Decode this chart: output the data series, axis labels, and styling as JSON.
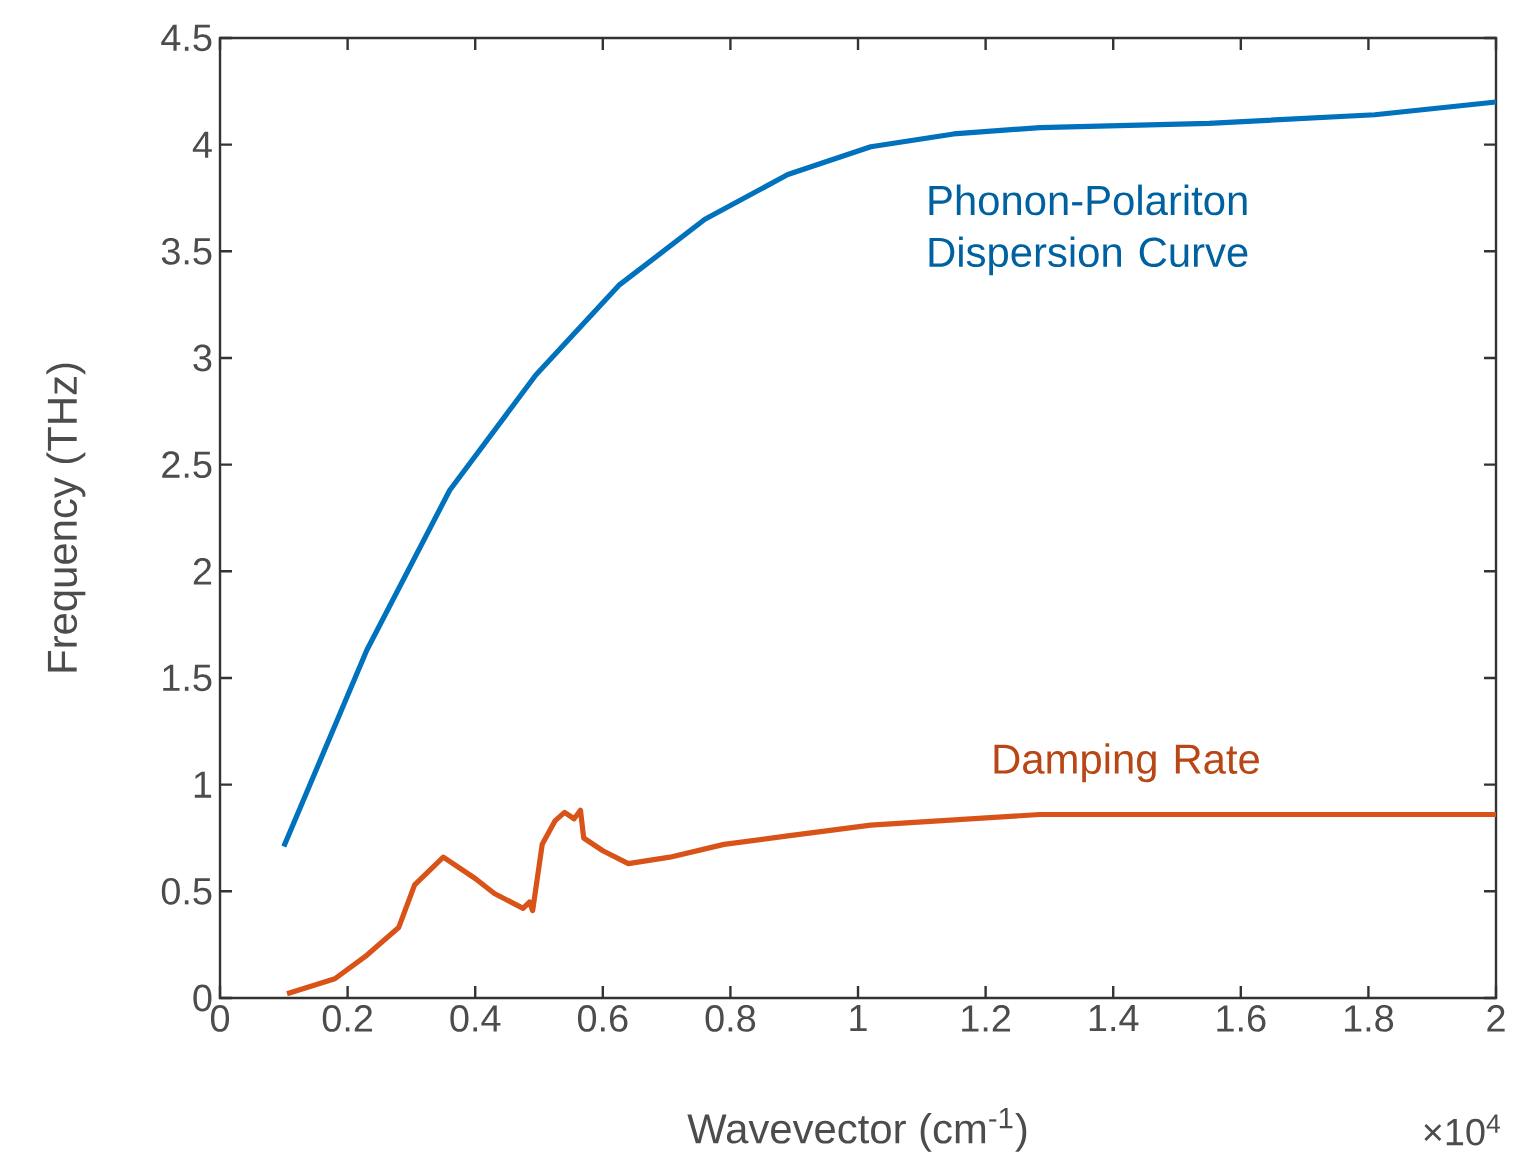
{
  "chart_data": {
    "type": "line",
    "xlabel": "Wavevector (cm$^{-1}$)",
    "ylabel": "Frequency (THz)",
    "xlim": [
      0,
      2
    ],
    "ylim": [
      0,
      4.5
    ],
    "xticks": [
      0,
      0.2,
      0.4,
      0.6,
      0.8,
      1,
      1.2,
      1.4,
      1.6,
      1.8,
      2
    ],
    "yticks": [
      0,
      0.5,
      1,
      1.5,
      2,
      2.5,
      3,
      3.5,
      4,
      4.5
    ],
    "annotations": [
      "×10$^{4}$"
    ],
    "grid": false,
    "legend": false,
    "marker": "none",
    "line_style": "solid",
    "series": [
      {
        "name": "Phonon-Polariton Dispersion Curve",
        "color": "#0072bd",
        "x": [
          0.1,
          0.23,
          0.36,
          0.495,
          0.625,
          0.76,
          0.89,
          1.02,
          1.15,
          1.285,
          1.55,
          1.81,
          2
        ],
        "values": [
          0.71,
          1.63,
          2.38,
          2.92,
          3.34,
          3.65,
          3.86,
          3.99,
          4.05,
          4.08,
          4.1,
          4.14,
          4.2
        ]
      },
      {
        "name": "Damping Rate",
        "color": "#d95319",
        "x": [
          0.105,
          0.18,
          0.23,
          0.28,
          0.305,
          0.35,
          0.4,
          0.43,
          0.475,
          0.485,
          0.49,
          0.505,
          0.525,
          0.54,
          0.555,
          0.565,
          0.57,
          0.6,
          0.64,
          0.705,
          0.79,
          0.89,
          1.02,
          1.285,
          1.55,
          2
        ],
        "values": [
          0.02,
          0.09,
          0.2,
          0.33,
          0.53,
          0.66,
          0.56,
          0.49,
          0.42,
          0.45,
          0.41,
          0.72,
          0.83,
          0.87,
          0.84,
          0.88,
          0.75,
          0.69,
          0.63,
          0.66,
          0.72,
          0.76,
          0.81,
          0.86,
          0.86,
          0.86
        ]
      }
    ]
  }
}
